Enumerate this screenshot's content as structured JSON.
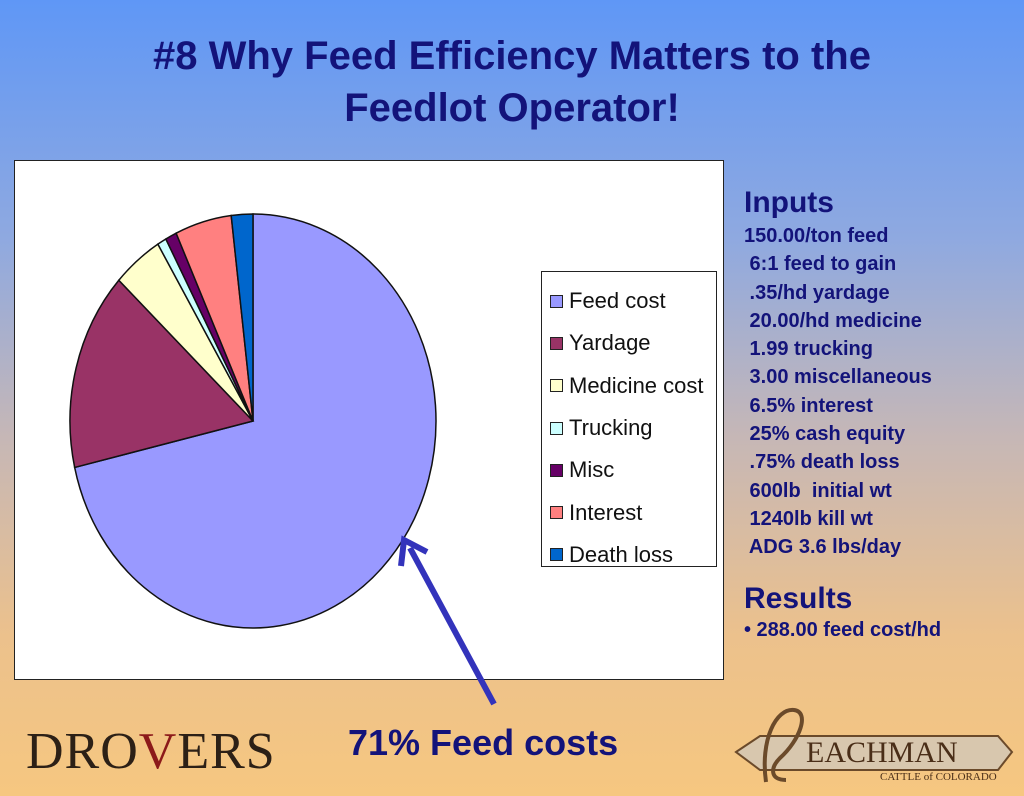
{
  "title": {
    "line1": "#8 Why Feed Efficiency Matters to the",
    "line2": "Feedlot Operator!"
  },
  "chart_data": {
    "type": "pie",
    "categories": [
      "Feed cost",
      "Yardage",
      "Medicine cost",
      "Trucking",
      "Misc",
      "Interest",
      "Death loss"
    ],
    "values": [
      71.4,
      15.5,
      4.4,
      0.8,
      1.0,
      5.0,
      1.9
    ],
    "colors": [
      "#9999ff",
      "#993366",
      "#ffffcc",
      "#ccffff",
      "#660066",
      "#ff8080",
      "#0066cc"
    ],
    "legend_position": "right"
  },
  "inputs": {
    "heading": "Inputs",
    "items": [
      "150.00/ton feed",
      " 6:1 feed to gain",
      " .35/hd yardage",
      " 20.00/hd medicine",
      " 1.99 trucking",
      " 3.00 miscellaneous",
      " 6.5% interest",
      " 25% cash equity",
      " .75% death loss",
      " 600lb  initial wt",
      " 1240lb kill wt",
      " ADG 3.6 lbs/day"
    ]
  },
  "results": {
    "heading": "Results",
    "line": "• 288.00 feed cost/hd"
  },
  "callout": "71% Feed costs",
  "logos": {
    "drovers": "DROVERS",
    "leachman_main": "EACHMAN",
    "leachman_sub": "CATTLE of COLORADO"
  },
  "colors": {
    "title": "#13137a",
    "arrow": "#3333bb"
  }
}
